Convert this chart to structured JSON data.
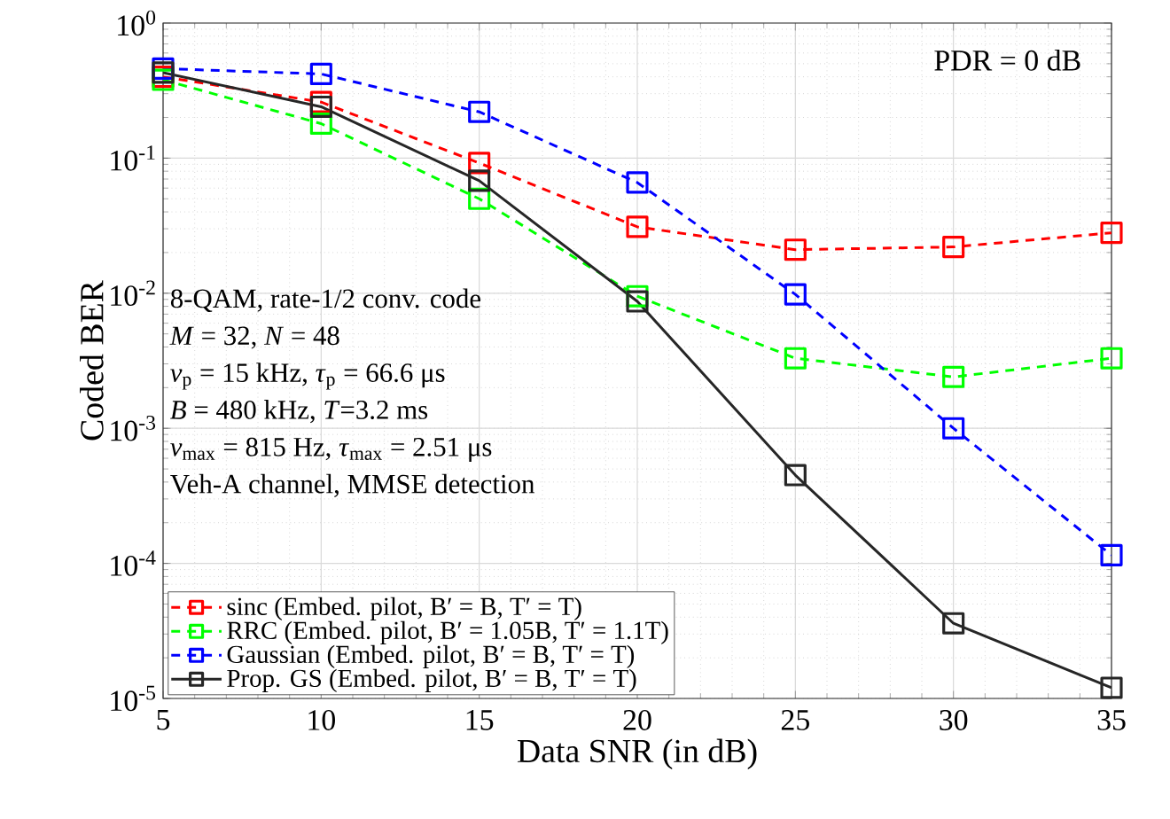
{
  "chart_data": {
    "type": "line",
    "xlabel": "Data SNR (in dB)",
    "ylabel": "Coded BER",
    "x": [
      5,
      10,
      15,
      20,
      25,
      30,
      35
    ],
    "series": [
      {
        "name": "sinc (Embed. pilot, B′ = B, T′ = T)",
        "color": "#ff0000",
        "line_style": "dashed",
        "values": [
          0.4,
          0.26,
          0.092,
          0.031,
          0.021,
          0.022,
          0.028
        ]
      },
      {
        "name": "RRC (Embed. pilot, B′ = 1.05B, T′ = 1.1T)",
        "color": "#00ff00",
        "line_style": "dashed",
        "values": [
          0.38,
          0.18,
          0.05,
          0.0095,
          0.0033,
          0.0024,
          0.0033
        ]
      },
      {
        "name": "Gaussian (Embed. pilot, B′ = B, T′ = T)",
        "color": "#0000ff",
        "line_style": "dashed",
        "values": [
          0.46,
          0.42,
          0.22,
          0.066,
          0.0098,
          0.001,
          0.000115
        ]
      },
      {
        "name": "Prop. GS (Embed. pilot, B′ = B, T′ = T)",
        "color": "#262626",
        "line_style": "solid",
        "values": [
          0.43,
          0.24,
          0.068,
          0.0087,
          0.00045,
          3.6e-05,
          1.2e-05
        ]
      }
    ],
    "log": "y",
    "xlim": [
      5,
      35
    ],
    "ylim": [
      1e-05,
      1
    ],
    "xticks": [
      5,
      10,
      15,
      20,
      25,
      30,
      35
    ],
    "yticks": [
      {
        "value": 1e-05,
        "label": "10$^{-5}$"
      },
      {
        "value": 0.0001,
        "label": "10$^{-4}$"
      },
      {
        "value": 0.001,
        "label": "10$^{-3}$"
      },
      {
        "value": 0.01,
        "label": "10$^{-2}$"
      },
      {
        "value": 0.1,
        "label": "10$^{-1}$"
      },
      {
        "value": 1,
        "label": "10$^{0}$"
      }
    ],
    "grid": true,
    "legend": "bottom left",
    "marker": "square",
    "annotations": [
      "PDR = 0 dB",
      "8-QAM, rate-1/2 conv. code",
      "*M* = 32, *N* = 48",
      "*ν*$_{p}$ = 15 kHz, *τ*$_{p}$ = 66.6 μs",
      "*B* = 480 kHz, *T*=3.2 ms",
      "*ν*$_{max}$ = 815 Hz, *τ*$_{max}$ = 2.51 μs",
      "Veh-A channel, MMSE detection"
    ]
  }
}
